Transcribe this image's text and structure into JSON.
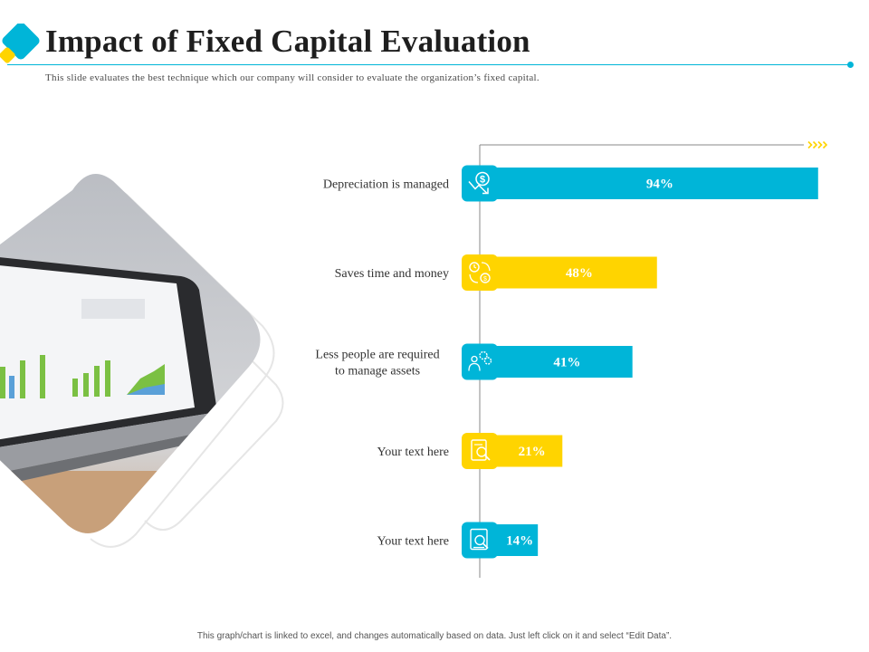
{
  "page": {
    "title": "Impact of Fixed Capital Evaluation",
    "subtitle": "This slide evaluates the best technique which our company will consider to evaluate the organization’s fixed capital.",
    "footer": "This graph/chart is linked to excel, and changes automatically based on data. Just left click on it and select “Edit Data”."
  },
  "colors": {
    "accent_blue": "#00b5d8",
    "accent_yellow": "#ffd400",
    "text_dark": "#1e1e1e",
    "axis_gray": "#8a8a8a"
  },
  "chart_data": {
    "type": "bar",
    "orientation": "horizontal",
    "title": "",
    "xlabel": "",
    "ylabel": "",
    "xlim": [
      0,
      100
    ],
    "grid": false,
    "categories": [
      "Depreciation is managed",
      "Saves time and money",
      "Less people are required to manage assets",
      "Your text here",
      "Your text here"
    ],
    "label_lines": [
      [
        "Depreciation is managed"
      ],
      [
        "Saves time and money"
      ],
      [
        "Less people are required",
        "to manage assets"
      ],
      [
        "Your text here"
      ],
      [
        "Your text here"
      ]
    ],
    "values": [
      94,
      48,
      41,
      21,
      14
    ],
    "value_labels": [
      "94%",
      "48%",
      "41%",
      "21%",
      "14%"
    ],
    "bar_colors": [
      "#00b5d8",
      "#ffd400",
      "#00b5d8",
      "#ffd400",
      "#00b5d8"
    ],
    "icons": [
      "dollar-down-icon",
      "time-money-cycle-icon",
      "people-gears-icon",
      "document-check-icon",
      "document-search-icon"
    ]
  }
}
